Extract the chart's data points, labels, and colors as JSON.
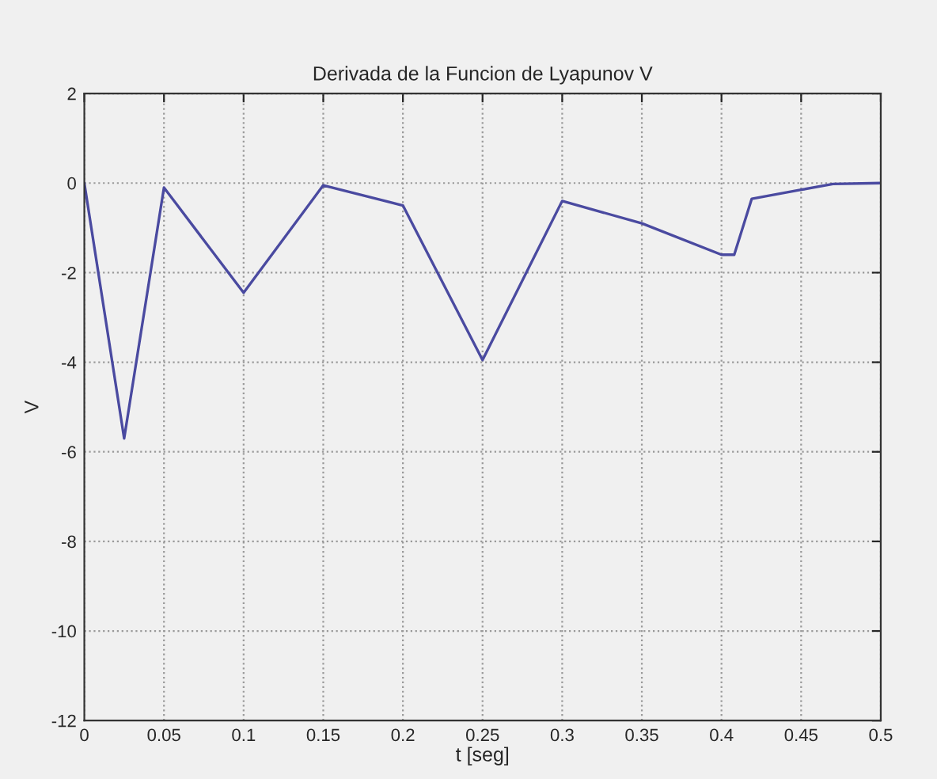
{
  "chart_data": {
    "type": "line",
    "title": "Derivada de la Funcion de Lyapunov V",
    "xlabel": "t [seg]",
    "ylabel": "V",
    "x": [
      0,
      0.025,
      0.05,
      0.1,
      0.15,
      0.2,
      0.25,
      0.3,
      0.35,
      0.4,
      0.408,
      0.419,
      0.45,
      0.47,
      0.5
    ],
    "series": [
      {
        "color": "#4a4aa0",
        "values": [
          0,
          -5.7,
          -0.1,
          -2.45,
          -0.05,
          -0.5,
          -3.95,
          -0.4,
          -0.9,
          -1.6,
          -1.6,
          -0.35,
          -0.15,
          -0.02,
          0
        ]
      }
    ],
    "xlim": [
      0,
      0.5
    ],
    "ylim": [
      -12,
      2
    ],
    "xticks": [
      0,
      0.05,
      0.1,
      0.15,
      0.2,
      0.25,
      0.3,
      0.35,
      0.4,
      0.45,
      0.5
    ],
    "yticks": [
      -12,
      -10,
      -8,
      -6,
      -4,
      -2,
      0,
      2
    ],
    "grid": true,
    "marker": "none",
    "line_style": "solid"
  }
}
